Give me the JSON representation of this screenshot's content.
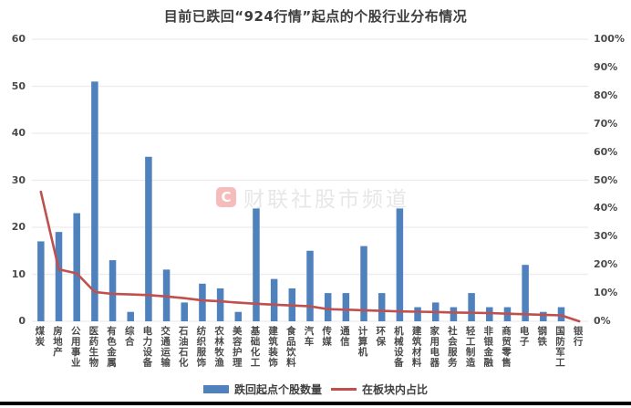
{
  "title": "目前已跌回“924行情”起点的个股行业分布情况",
  "watermark": {
    "badge": "C",
    "text": "财联社股市频道"
  },
  "legend": [
    {
      "label": "跌回起点个股数量",
      "type": "bar"
    },
    {
      "label": "在板块内占比",
      "type": "line"
    }
  ],
  "colors": {
    "bar": "#4F81BD",
    "line": "#C0504D",
    "grid": "#ececec",
    "axis_text": "#4a4a4a",
    "title_text": "#3d3d3d",
    "watermark_badge": "#f6bcbc",
    "watermark_text": "#e7e7e7",
    "bottom_border": "#000000"
  },
  "chart_data": {
    "type": "bar",
    "subtype": "combo-bar-line",
    "title": "目前已跌回“924行情”起点的个股行业分布情况",
    "categories": [
      "煤炭",
      "房地产",
      "公用事业",
      "医药生物",
      "有色金属",
      "综合",
      "电力设备",
      "交通运输",
      "石油石化",
      "纺织服饰",
      "农林牧渔",
      "美容护理",
      "基础化工",
      "建筑装饰",
      "食品饮料",
      "汽车",
      "传媒",
      "通信",
      "计算机",
      "环保",
      "机械设备",
      "建筑材料",
      "家用电器",
      "社会服务",
      "轻工制造",
      "非银金融",
      "商贸零售",
      "电子",
      "钢铁",
      "国防军工",
      "银行"
    ],
    "series": [
      {
        "name": "跌回起点个股数量",
        "type": "bar",
        "axis": "left",
        "values": [
          17,
          19,
          23,
          51,
          13,
          2,
          35,
          11,
          4,
          8,
          7,
          2,
          24,
          9,
          7,
          15,
          6,
          6,
          16,
          6,
          24,
          3,
          4,
          3,
          6,
          3,
          3,
          12,
          2,
          3,
          0
        ]
      },
      {
        "name": "在板块内占比",
        "type": "line",
        "axis": "right",
        "unit": "%",
        "values": [
          45.9,
          18.4,
          17.0,
          10.4,
          9.7,
          9.5,
          9.3,
          8.8,
          8.2,
          7.4,
          7.1,
          6.6,
          6.2,
          5.9,
          5.6,
          5.3,
          4.3,
          4.1,
          3.9,
          3.7,
          3.5,
          3.4,
          3.3,
          3.1,
          3.0,
          2.9,
          2.7,
          2.5,
          2.3,
          2.1,
          0.0
        ]
      }
    ],
    "left_axis": {
      "min": 0,
      "max": 60,
      "step": 10,
      "ticks": [
        "0",
        "10",
        "20",
        "30",
        "40",
        "50",
        "60"
      ]
    },
    "right_axis": {
      "min": 0,
      "max": 100,
      "step": 10,
      "ticks": [
        "0%",
        "10%",
        "20%",
        "30%",
        "40%",
        "50%",
        "60%",
        "70%",
        "80%",
        "90%",
        "100%"
      ]
    },
    "grid": "horizontal",
    "legend_position": "bottom"
  }
}
